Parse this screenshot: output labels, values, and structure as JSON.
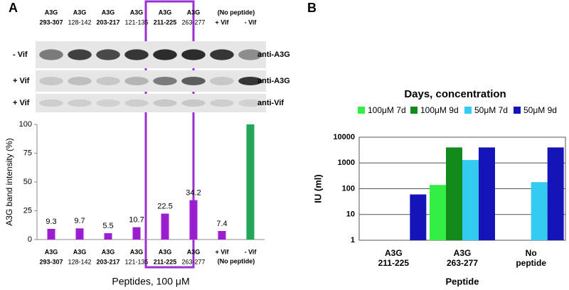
{
  "panel_labels": [
    "A",
    "B"
  ],
  "blot": {
    "rows": [
      {
        "label": "- Vif",
        "antibody": "anti-A3G"
      },
      {
        "label": "+ Vif",
        "antibody": "anti-A3G"
      },
      {
        "label": "+ Vif",
        "antibody": "anti-Vif"
      }
    ]
  },
  "chart_data": [
    {
      "type": "bar",
      "ylabel": "A3G band intensity (%)",
      "xlabel": "Peptides, 100 μM",
      "categories": [
        [
          "A3G",
          "293-307"
        ],
        [
          "A3G",
          "128-142"
        ],
        [
          "A3G",
          "203-217"
        ],
        [
          "A3G",
          "121-135"
        ],
        [
          "A3G",
          "211-225"
        ],
        [
          "A3G",
          "263-277"
        ],
        [
          "+ Vif"
        ],
        [
          "- Vif"
        ]
      ],
      "category_group": "(No peptide)",
      "values": [
        9.3,
        9.7,
        5.5,
        10.7,
        22.5,
        34.2,
        7.4,
        100
      ],
      "value_labels": [
        "9.3",
        "9.7",
        "5.5",
        "10.7",
        "22.5",
        "34.2",
        "7.4",
        null
      ],
      "colors": [
        "#9b1fd0",
        "#9b1fd0",
        "#9b1fd0",
        "#9b1fd0",
        "#9b1fd0",
        "#9b1fd0",
        "#9b1fd0",
        "#22a65a"
      ],
      "ylim": [
        0,
        100
      ],
      "yticks": [
        0,
        25,
        50,
        75,
        100
      ],
      "grid": false
    },
    {
      "type": "bar",
      "title": "Days, concentration",
      "ylabel": "IU (ml)",
      "xlabel": "Peptide",
      "log_scale": true,
      "legend": "top",
      "categories": [
        [
          "A3G",
          "211-225"
        ],
        [
          "A3G",
          "263-277"
        ],
        [
          "No",
          "peptide"
        ]
      ],
      "series": [
        {
          "name": "100μM 7d",
          "color": "#33ee44",
          "values": [
            null,
            140,
            null
          ]
        },
        {
          "name": "100μM 9d",
          "color": "#138a1c",
          "values": [
            null,
            4000,
            null
          ]
        },
        {
          "name": "50μM 7d",
          "color": "#33ccf0",
          "values": [
            null,
            1300,
            180
          ]
        },
        {
          "name": "50μM 9d",
          "color": "#1414b8",
          "values": [
            60,
            4000,
            4000
          ]
        }
      ],
      "ylim": [
        1,
        10000
      ],
      "yticks": [
        1,
        10,
        100,
        1000,
        10000
      ],
      "grid": true
    }
  ]
}
